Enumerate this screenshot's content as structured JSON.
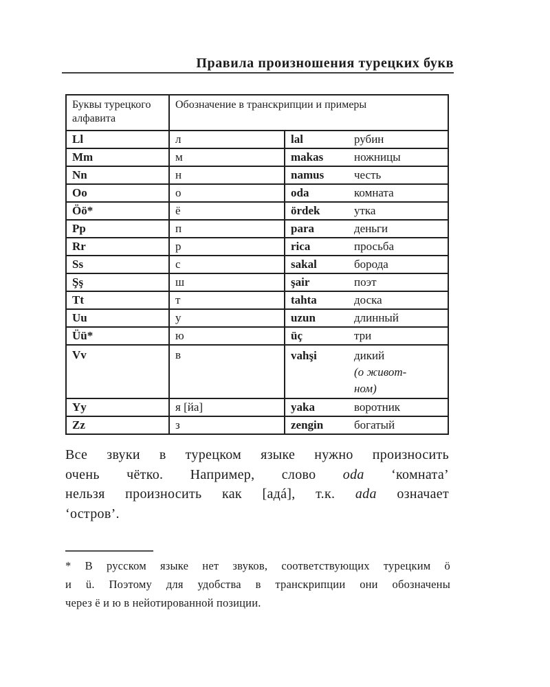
{
  "page_title": "Правила произношения турецких букв",
  "colors": {
    "text": "#1c1c1c",
    "table_border": "#1f1f1f",
    "rule": "#3d3d3d"
  },
  "table": {
    "header": {
      "letters_col": "Буквы турецкого алфавита",
      "transcription_col": "Обозначение в транскрипции и примеры"
    },
    "rows": [
      {
        "letter": "Ll",
        "transcription": "л",
        "example": "lal",
        "translation": "рубин"
      },
      {
        "letter": "Mm",
        "transcription": "м",
        "example": "makas",
        "translation": "ножницы"
      },
      {
        "letter": "Nn",
        "transcription": "н",
        "example": "namus",
        "translation": "честь"
      },
      {
        "letter": "Oo",
        "transcription": "о",
        "example": "oda",
        "translation": "комната"
      },
      {
        "letter": "Öö*",
        "transcription": "ё",
        "example": "ördek",
        "translation": "утка"
      },
      {
        "letter": "Pp",
        "transcription": "п",
        "example": "para",
        "translation": "деньги"
      },
      {
        "letter": "Rr",
        "transcription": "р",
        "example": "rica",
        "translation": "просьба"
      },
      {
        "letter": "Ss",
        "transcription": "с",
        "example": "sakal",
        "translation": "борода"
      },
      {
        "letter": "Şş",
        "transcription": "ш",
        "example": "şair",
        "translation": "поэт"
      },
      {
        "letter": "Tt",
        "transcription": "т",
        "example": "tahta",
        "translation": "доска"
      },
      {
        "letter": "Uu",
        "transcription": "у",
        "example": "uzun",
        "translation": "длинный"
      },
      {
        "letter": "Üü*",
        "transcription": "ю",
        "example": "üç",
        "translation": "три"
      },
      {
        "letter": "Vv",
        "transcription": "в",
        "example": "vahşi",
        "translation": "дикий",
        "translation_note": "(о живот-\nном)"
      },
      {
        "letter": "Yy",
        "transcription": "я [йа]",
        "example": "yaka",
        "translation": "воротник"
      },
      {
        "letter": "Zz",
        "transcription": "з",
        "example": "zengin",
        "translation": "богатый"
      }
    ]
  },
  "paragraph": {
    "lines": [
      [
        "Все звуки в турецком языке нужно произносить"
      ],
      [
        "очень чётко. Например, слово ",
        "oda",
        " ‘комната’"
      ],
      [
        "нельзя произносить как [адá], т.к. ",
        "ada",
        " означает"
      ],
      [
        "‘остров’."
      ]
    ]
  },
  "footnote": {
    "lines": [
      "* В русском языке нет звуков, соответствующих турецким ö",
      "и ü. Поэтому для удобства в транскрипции они обозначены",
      "через ё и ю в нейотированной позиции."
    ]
  }
}
